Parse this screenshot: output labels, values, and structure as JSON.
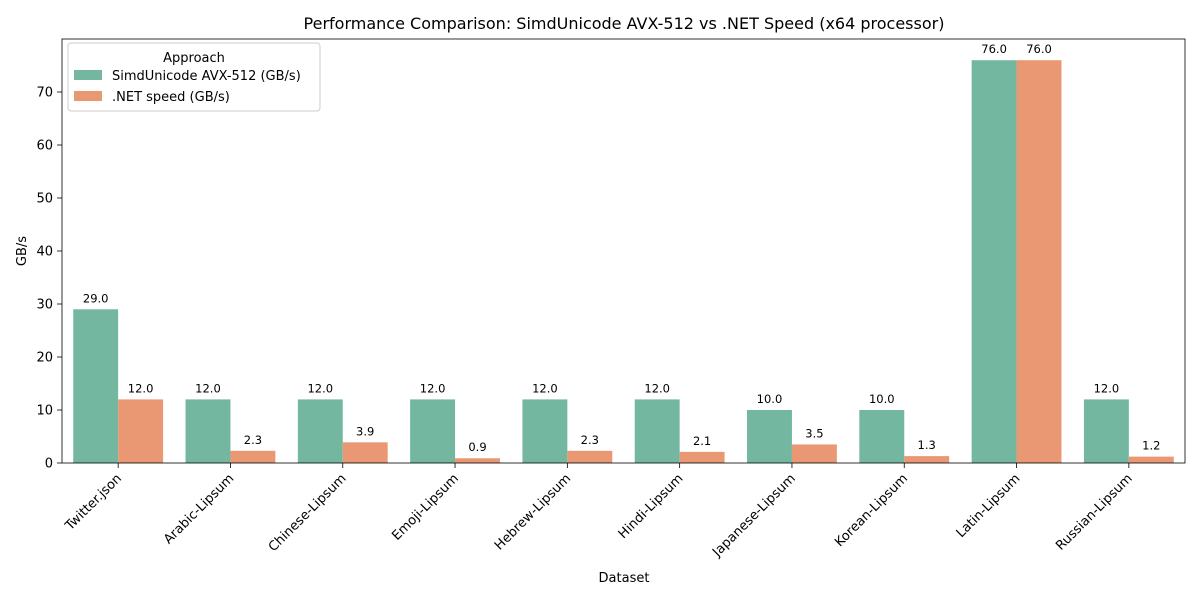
{
  "chart_data": {
    "type": "bar",
    "title": "Performance Comparison: SimdUnicode AVX-512 vs .NET Speed (x64 processor)",
    "xlabel": "Dataset",
    "ylabel": "GB/s",
    "ylim": [
      0,
      80
    ],
    "yticks": [
      0,
      10,
      20,
      30,
      40,
      50,
      60,
      70
    ],
    "grid": false,
    "legend_title": "Approach",
    "legend_position": "top-left",
    "categories": [
      "Twitter.json",
      "Arabic-Lipsum",
      "Chinese-Lipsum",
      "Emoji-Lipsum",
      "Hebrew-Lipsum",
      "Hindi-Lipsum",
      "Japanese-Lipsum",
      "Korean-Lipsum",
      "Latin-Lipsum",
      "Russian-Lipsum"
    ],
    "series": [
      {
        "name": "SimdUnicode AVX-512 (GB/s)",
        "color": "#73b7a1",
        "values": [
          29.0,
          12.0,
          12.0,
          12.0,
          12.0,
          12.0,
          10.0,
          10.0,
          76.0,
          12.0
        ],
        "labels": [
          "29.0",
          "12.0",
          "12.0",
          "12.0",
          "12.0",
          "12.0",
          "10.0",
          "10.0",
          "76.0",
          "12.0"
        ]
      },
      {
        "name": ".NET speed (GB/s)",
        "color": "#e99873",
        "values": [
          12.0,
          2.3,
          3.9,
          0.9,
          2.3,
          2.1,
          3.5,
          1.3,
          76.0,
          1.2
        ],
        "labels": [
          "12.0",
          "2.3",
          "3.9",
          "0.9",
          "2.3",
          "2.1",
          "3.5",
          "1.3",
          "76.0",
          "1.2"
        ]
      }
    ]
  }
}
